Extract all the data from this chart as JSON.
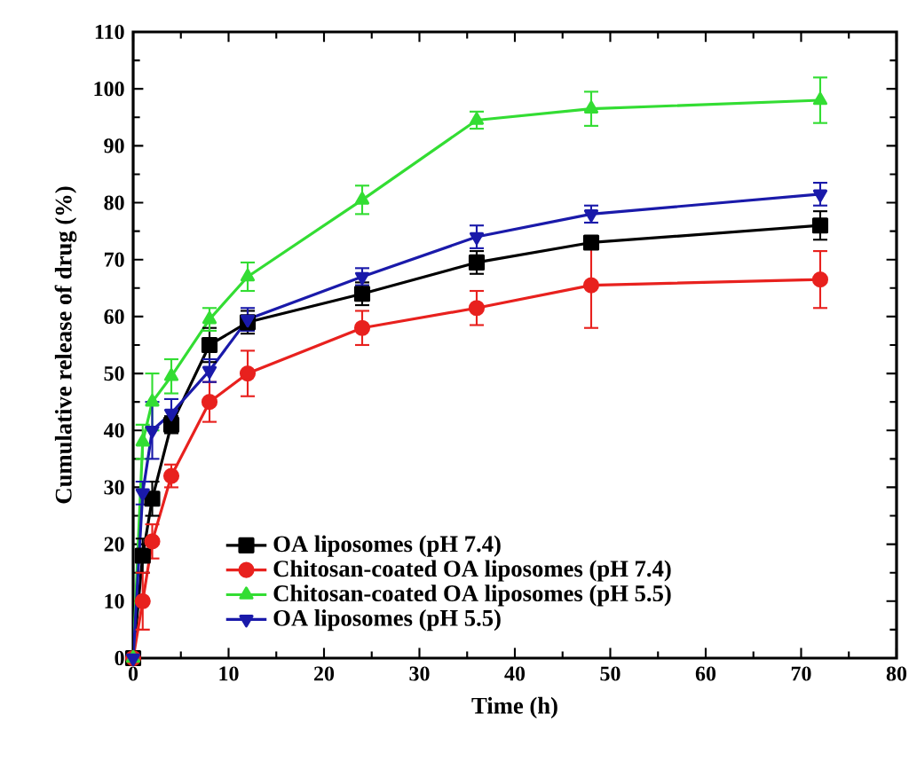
{
  "chart_data": {
    "type": "line",
    "xlabel": "Time (h)",
    "ylabel": "Cumulative release of drug (%)",
    "xlim": [
      0,
      80
    ],
    "ylim": [
      0,
      110
    ],
    "xticks": [
      0,
      10,
      20,
      30,
      40,
      50,
      60,
      70,
      80
    ],
    "yticks": [
      0,
      10,
      20,
      30,
      40,
      50,
      60,
      70,
      80,
      90,
      100,
      110
    ],
    "x": [
      0,
      1,
      2,
      4,
      8,
      12,
      24,
      36,
      48,
      72
    ],
    "legend": "bottom left",
    "line_style": "solid",
    "series": [
      {
        "name": "OA liposomes (pH 7.4)",
        "color": "#000000",
        "marker": "square",
        "values": [
          0,
          18,
          28,
          41,
          55,
          59,
          64,
          69.5,
          73,
          76
        ],
        "errors": [
          0,
          3,
          3,
          1.5,
          3,
          2,
          2,
          2,
          null,
          2.5
        ]
      },
      {
        "name": "Chitosan-coated OA liposomes (pH 7.4)",
        "color": "#e8211e",
        "marker": "circle",
        "values": [
          0,
          10,
          20.5,
          32,
          45,
          50,
          58,
          61.5,
          65.5,
          66.5
        ],
        "errors": [
          0,
          5,
          3,
          2,
          3.5,
          4,
          3,
          3,
          7.5,
          5
        ]
      },
      {
        "name": "Chitosan-coated OA liposomes (pH 5.5)",
        "color": "#33dd33",
        "marker": "triangle",
        "values": [
          0,
          38,
          45,
          49.5,
          59.5,
          67,
          80.5,
          94.5,
          96.5,
          98
        ],
        "errors": [
          0,
          3,
          5,
          3,
          2,
          2.5,
          2.5,
          1.5,
          3,
          4
        ]
      },
      {
        "name": "OA liposomes (pH 5.5)",
        "color": "#1a1aaa",
        "marker": "triangle down",
        "values": [
          0,
          29,
          40,
          43,
          50.5,
          59.5,
          67,
          74,
          78,
          81.5
        ],
        "errors": [
          0,
          2,
          5,
          2.5,
          2,
          2,
          1.5,
          2,
          1.5,
          2
        ]
      }
    ]
  }
}
